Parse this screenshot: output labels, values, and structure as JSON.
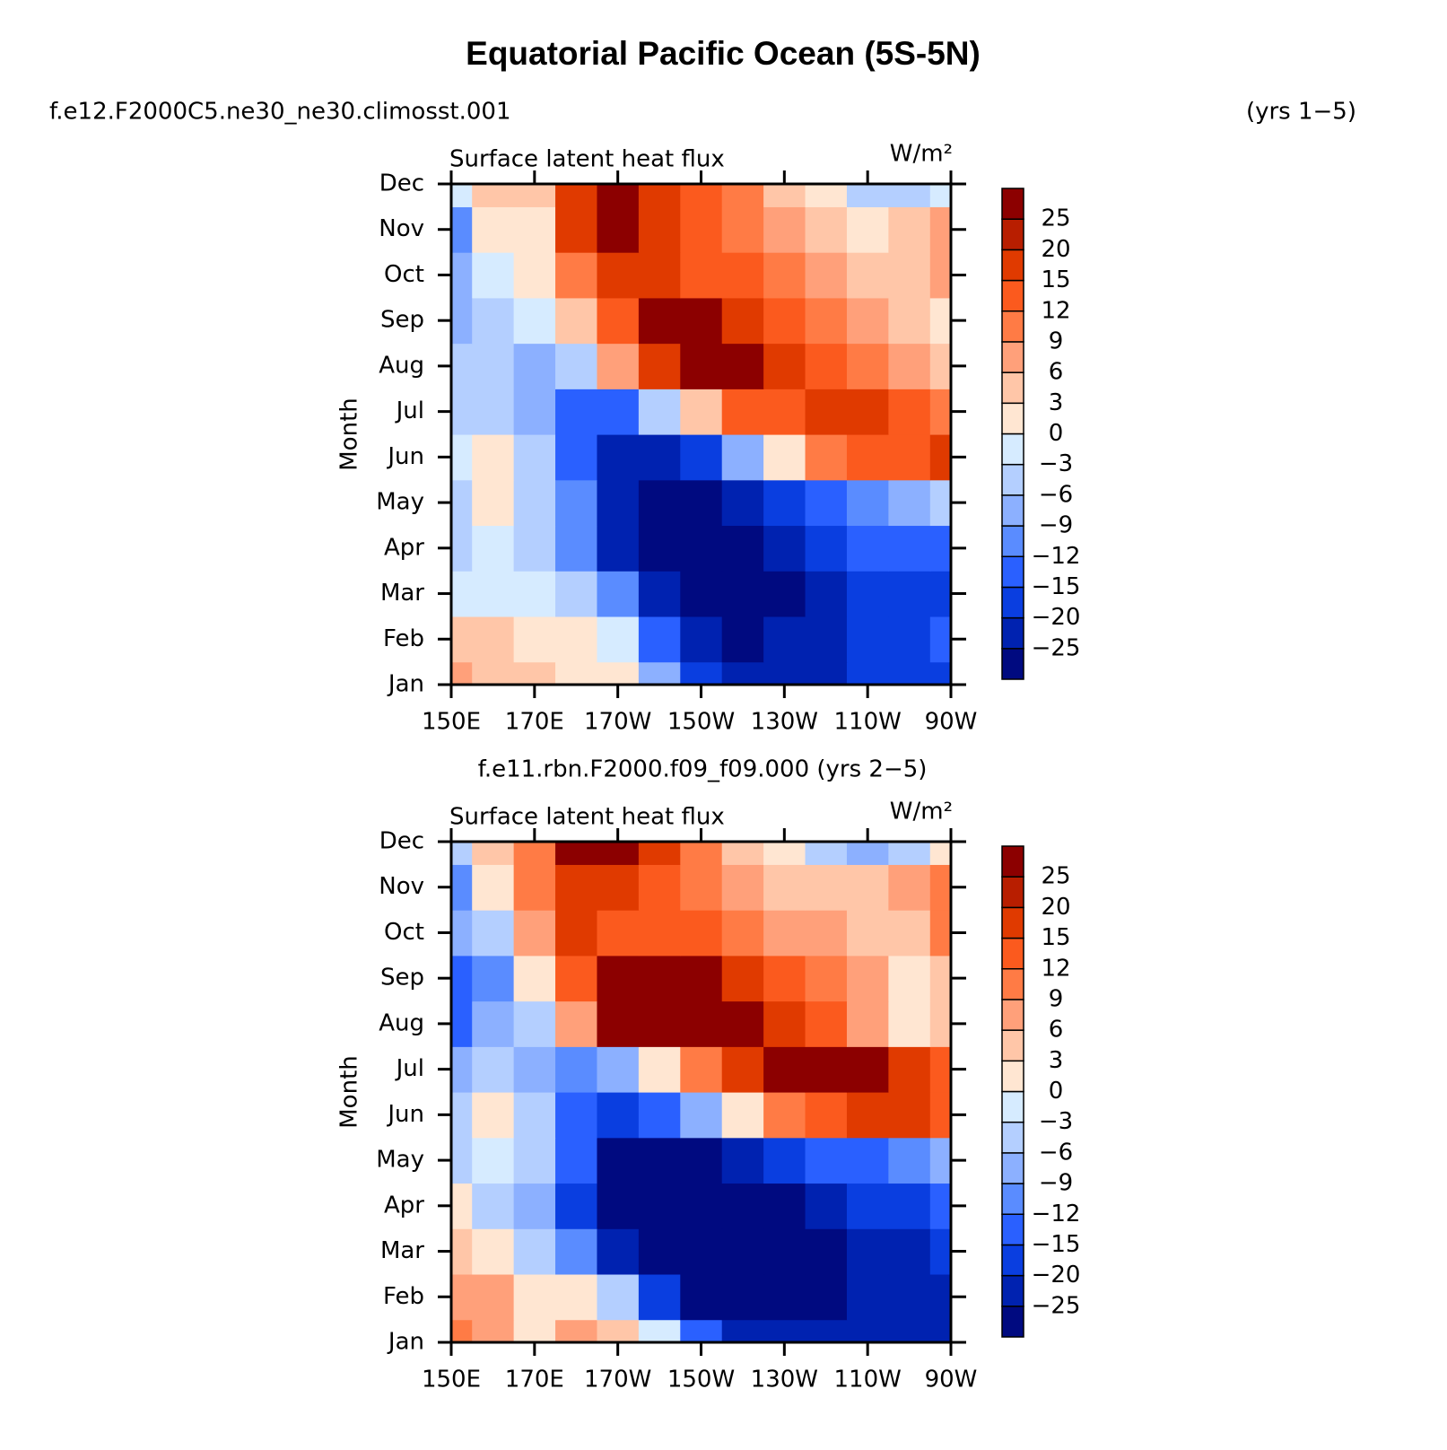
{
  "title": "Equatorial Pacific Ocean (5S-5N)",
  "chart_data": [
    {
      "type": "contour",
      "title": "f.e12.F2000C5.ne30_ne30.climosst.001",
      "title_right": "(yrs 1−5)",
      "left_string": "Surface latent heat flux",
      "right_string": "W/m²",
      "y_label": "Month",
      "categories": [
        "Jan",
        "Feb",
        "Mar",
        "Apr",
        "May",
        "Jun",
        "Jul",
        "Aug",
        "Sep",
        "Oct",
        "Nov",
        "Dec"
      ],
      "x": [
        150,
        160,
        170,
        180,
        190,
        200,
        210,
        220,
        230,
        240,
        250,
        260,
        270
      ],
      "xlim": [
        150,
        270
      ],
      "xticks": [
        {
          "value": 150,
          "label": "150E"
        },
        {
          "value": 170,
          "label": "170E"
        },
        {
          "value": 190,
          "label": "170W"
        },
        {
          "value": 210,
          "label": "150W"
        },
        {
          "value": 230,
          "label": "130W"
        },
        {
          "value": 250,
          "label": "110W"
        },
        {
          "value": 270,
          "label": "90W"
        }
      ],
      "z": [
        [
          9,
          6,
          6,
          3,
          3,
          -6,
          -15,
          -20,
          -20,
          -20,
          -15,
          -15,
          -15
        ],
        [
          6,
          6,
          3,
          3,
          0,
          -12,
          -20,
          -25,
          -20,
          -20,
          -15,
          -15,
          -12
        ],
        [
          0,
          0,
          0,
          -3,
          -9,
          -20,
          -25,
          -25,
          -25,
          -20,
          -15,
          -15,
          -15
        ],
        [
          -3,
          0,
          -3,
          -9,
          -20,
          -25,
          -25,
          -25,
          -20,
          -15,
          -12,
          -12,
          -12
        ],
        [
          -3,
          3,
          -3,
          -9,
          -20,
          -25,
          -25,
          -20,
          -15,
          -12,
          -9,
          -6,
          -3
        ],
        [
          0,
          3,
          -3,
          -12,
          -20,
          -20,
          -15,
          -6,
          3,
          12,
          15,
          15,
          20
        ],
        [
          -3,
          -3,
          -6,
          -12,
          -12,
          -3,
          6,
          15,
          15,
          20,
          20,
          15,
          12
        ],
        [
          -3,
          -3,
          -6,
          -3,
          9,
          20,
          27,
          27,
          20,
          15,
          12,
          9,
          6
        ],
        [
          -6,
          -3,
          0,
          6,
          15,
          27,
          27,
          20,
          15,
          12,
          9,
          6,
          3
        ],
        [
          -6,
          0,
          3,
          12,
          20,
          20,
          15,
          15,
          12,
          9,
          6,
          6,
          9
        ],
        [
          -9,
          3,
          3,
          20,
          27,
          20,
          15,
          12,
          9,
          6,
          3,
          6,
          9
        ],
        [
          0,
          6,
          6,
          20,
          27,
          20,
          15,
          12,
          6,
          3,
          -3,
          -3,
          0
        ]
      ],
      "levels": [
        {
          "value": -25,
          "label": "−25"
        },
        {
          "value": -20,
          "label": "−20"
        },
        {
          "value": -15,
          "label": "−15"
        },
        {
          "value": -12,
          "label": "−12"
        },
        {
          "value": -9,
          "label": "−9"
        },
        {
          "value": -6,
          "label": "−6"
        },
        {
          "value": -3,
          "label": "−3"
        },
        0,
        3,
        6,
        9,
        12,
        15,
        20,
        25
      ],
      "colors": [
        "#000a80",
        "#0022b0",
        "#0a3ee0",
        "#2a60ff",
        "#5a8cff",
        "#8cb0ff",
        "#b4cfff",
        "#d6ebff",
        "#ffe6d2",
        "#ffc6a8",
        "#ffa07a",
        "#ff7b45",
        "#fb5a1e",
        "#e03a00",
        "#b81e00",
        "#8c0000"
      ]
    },
    {
      "type": "contour",
      "title": "f.e11.rbn.F2000.f09_f09.000 (yrs 2−5)",
      "left_string": "Surface latent heat flux",
      "right_string": "W/m²",
      "y_label": "Month",
      "categories": [
        "Jan",
        "Feb",
        "Mar",
        "Apr",
        "May",
        "Jun",
        "Jul",
        "Aug",
        "Sep",
        "Oct",
        "Nov",
        "Dec"
      ],
      "x": [
        150,
        160,
        170,
        180,
        190,
        200,
        210,
        220,
        230,
        240,
        250,
        260,
        270
      ],
      "xlim": [
        150,
        270
      ],
      "xticks": [
        {
          "value": 150,
          "label": "150E"
        },
        {
          "value": 170,
          "label": "170E"
        },
        {
          "value": 190,
          "label": "170W"
        },
        {
          "value": 210,
          "label": "150W"
        },
        {
          "value": 230,
          "label": "130W"
        },
        {
          "value": 250,
          "label": "110W"
        },
        {
          "value": 270,
          "label": "90W"
        }
      ],
      "z": [
        [
          12,
          9,
          3,
          9,
          6,
          0,
          -12,
          -20,
          -20,
          -20,
          -20,
          -20,
          -20
        ],
        [
          9,
          9,
          3,
          3,
          -3,
          -15,
          -25,
          -25,
          -25,
          -25,
          -20,
          -20,
          -20
        ],
        [
          6,
          3,
          -3,
          -9,
          -20,
          -25,
          -25,
          -25,
          -25,
          -25,
          -20,
          -20,
          -15
        ],
        [
          3,
          -3,
          -6,
          -15,
          -25,
          -25,
          -25,
          -25,
          -25,
          -20,
          -15,
          -15,
          -12
        ],
        [
          -3,
          0,
          -3,
          -12,
          -25,
          -25,
          -25,
          -20,
          -15,
          -12,
          -12,
          -9,
          -6
        ],
        [
          -3,
          3,
          -3,
          -12,
          -15,
          -12,
          -6,
          3,
          12,
          15,
          20,
          20,
          15
        ],
        [
          -6,
          -3,
          -6,
          -9,
          -6,
          3,
          12,
          20,
          27,
          27,
          27,
          20,
          15
        ],
        [
          -12,
          -6,
          -3,
          9,
          27,
          27,
          27,
          27,
          20,
          15,
          9,
          3,
          6
        ],
        [
          -12,
          -9,
          3,
          15,
          27,
          27,
          27,
          20,
          15,
          12,
          9,
          3,
          6
        ],
        [
          -6,
          -3,
          9,
          20,
          15,
          15,
          15,
          12,
          9,
          9,
          6,
          6,
          12
        ],
        [
          -9,
          3,
          12,
          20,
          20,
          15,
          12,
          9,
          6,
          6,
          6,
          9,
          12
        ],
        [
          -3,
          6,
          12,
          27,
          27,
          20,
          12,
          6,
          3,
          -3,
          -6,
          -3,
          3
        ]
      ],
      "levels": [
        {
          "value": -25,
          "label": "−25"
        },
        {
          "value": -20,
          "label": "−20"
        },
        {
          "value": -15,
          "label": "−15"
        },
        {
          "value": -12,
          "label": "−12"
        },
        {
          "value": -9,
          "label": "−9"
        },
        {
          "value": -6,
          "label": "−6"
        },
        {
          "value": -3,
          "label": "−3"
        },
        0,
        3,
        6,
        9,
        12,
        15,
        20,
        25
      ],
      "colors": [
        "#000a80",
        "#0022b0",
        "#0a3ee0",
        "#2a60ff",
        "#5a8cff",
        "#8cb0ff",
        "#b4cfff",
        "#d6ebff",
        "#ffe6d2",
        "#ffc6a8",
        "#ffa07a",
        "#ff7b45",
        "#fb5a1e",
        "#e03a00",
        "#b81e00",
        "#8c0000"
      ]
    }
  ]
}
